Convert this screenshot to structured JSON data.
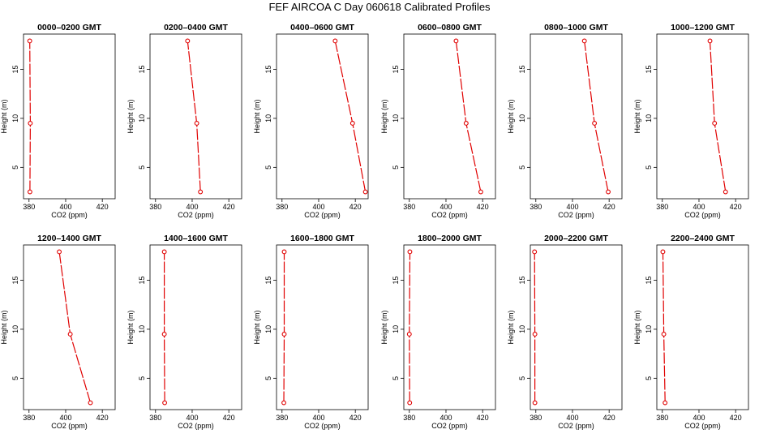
{
  "figure": {
    "title": "FEF AIRCOA C  Day 060618  Calibrated Profiles"
  },
  "colors": {
    "profile": "#e00000",
    "axis": "#000000",
    "background": "#ffffff"
  },
  "chart_data": [
    {
      "type": "line",
      "title": "0000–0200 GMT",
      "xlabel": "CO2 (ppm)",
      "ylabel": "Height (m)",
      "xlim": [
        377,
        427
      ],
      "ylim": [
        1.8,
        18.6
      ],
      "xticks": [
        380,
        400,
        420
      ],
      "yticks": [
        5,
        10,
        15
      ],
      "series": [
        {
          "name": "profile",
          "x": [
            380.5,
            380.7,
            380.4
          ],
          "y": [
            2.5,
            9.5,
            17.9
          ]
        }
      ]
    },
    {
      "type": "line",
      "title": "0200–0400 GMT",
      "xlabel": "CO2 (ppm)",
      "ylabel": "Height (m)",
      "xlim": [
        377,
        427
      ],
      "ylim": [
        1.8,
        18.6
      ],
      "xticks": [
        380,
        400,
        420
      ],
      "yticks": [
        5,
        10,
        15
      ],
      "series": [
        {
          "name": "profile",
          "x": [
            404.5,
            402.5,
            397.5
          ],
          "y": [
            2.5,
            9.5,
            17.9
          ]
        }
      ]
    },
    {
      "type": "line",
      "title": "0400–0600 GMT",
      "xlabel": "CO2 (ppm)",
      "ylabel": "Height (m)",
      "xlim": [
        377,
        427
      ],
      "ylim": [
        1.8,
        18.6
      ],
      "xticks": [
        380,
        400,
        420
      ],
      "yticks": [
        5,
        10,
        15
      ],
      "series": [
        {
          "name": "profile",
          "x": [
            425.5,
            418.5,
            409.0
          ],
          "y": [
            2.5,
            9.5,
            17.9
          ]
        }
      ]
    },
    {
      "type": "line",
      "title": "0600–0800 GMT",
      "xlabel": "CO2 (ppm)",
      "ylabel": "Height (m)",
      "xlim": [
        377,
        427
      ],
      "ylim": [
        1.8,
        18.6
      ],
      "xticks": [
        380,
        400,
        420
      ],
      "yticks": [
        5,
        10,
        15
      ],
      "series": [
        {
          "name": "profile",
          "x": [
            419.0,
            411.0,
            405.5
          ],
          "y": [
            2.5,
            9.5,
            17.9
          ]
        }
      ]
    },
    {
      "type": "line",
      "title": "0800–1000 GMT",
      "xlabel": "CO2 (ppm)",
      "ylabel": "Height (m)",
      "xlim": [
        377,
        427
      ],
      "ylim": [
        1.8,
        18.6
      ],
      "xticks": [
        380,
        400,
        420
      ],
      "yticks": [
        5,
        10,
        15
      ],
      "series": [
        {
          "name": "profile",
          "x": [
            419.5,
            412.0,
            406.5
          ],
          "y": [
            2.5,
            9.5,
            17.9
          ]
        }
      ]
    },
    {
      "type": "line",
      "title": "1000–1200 GMT",
      "xlabel": "CO2 (ppm)",
      "ylabel": "Height (m)",
      "xlim": [
        377,
        427
      ],
      "ylim": [
        1.8,
        18.6
      ],
      "xticks": [
        380,
        400,
        420
      ],
      "yticks": [
        5,
        10,
        15
      ],
      "series": [
        {
          "name": "profile",
          "x": [
            414.5,
            408.5,
            406.0
          ],
          "y": [
            2.5,
            9.5,
            17.9
          ]
        }
      ]
    },
    {
      "type": "line",
      "title": "1200–1400 GMT",
      "xlabel": "CO2 (ppm)",
      "ylabel": "Height (m)",
      "xlim": [
        377,
        427
      ],
      "ylim": [
        1.8,
        18.6
      ],
      "xticks": [
        380,
        400,
        420
      ],
      "yticks": [
        5,
        10,
        15
      ],
      "series": [
        {
          "name": "profile",
          "x": [
            413.5,
            402.5,
            396.5
          ],
          "y": [
            2.5,
            9.5,
            17.9
          ]
        }
      ]
    },
    {
      "type": "line",
      "title": "1400–1600 GMT",
      "xlabel": "CO2 (ppm)",
      "ylabel": "Height (m)",
      "xlim": [
        377,
        427
      ],
      "ylim": [
        1.8,
        18.6
      ],
      "xticks": [
        380,
        400,
        420
      ],
      "yticks": [
        5,
        10,
        15
      ],
      "series": [
        {
          "name": "profile",
          "x": [
            385.0,
            384.8,
            384.8
          ],
          "y": [
            2.5,
            9.5,
            17.9
          ]
        }
      ]
    },
    {
      "type": "line",
      "title": "1600–1800 GMT",
      "xlabel": "CO2 (ppm)",
      "ylabel": "Height (m)",
      "xlim": [
        377,
        427
      ],
      "ylim": [
        1.8,
        18.6
      ],
      "xticks": [
        380,
        400,
        420
      ],
      "yticks": [
        5,
        10,
        15
      ],
      "series": [
        {
          "name": "profile",
          "x": [
            381.0,
            381.2,
            381.2
          ],
          "y": [
            2.5,
            9.5,
            17.9
          ]
        }
      ]
    },
    {
      "type": "line",
      "title": "1800–2000 GMT",
      "xlabel": "CO2 (ppm)",
      "ylabel": "Height (m)",
      "xlim": [
        377,
        427
      ],
      "ylim": [
        1.8,
        18.6
      ],
      "xticks": [
        380,
        400,
        420
      ],
      "yticks": [
        5,
        10,
        15
      ],
      "series": [
        {
          "name": "profile",
          "x": [
            380.2,
            380.0,
            380.3
          ],
          "y": [
            2.5,
            9.5,
            17.9
          ]
        }
      ]
    },
    {
      "type": "line",
      "title": "2000–2200 GMT",
      "xlabel": "CO2 (ppm)",
      "ylabel": "Height (m)",
      "xlim": [
        377,
        427
      ],
      "ylim": [
        1.8,
        18.6
      ],
      "xticks": [
        380,
        400,
        420
      ],
      "yticks": [
        5,
        10,
        15
      ],
      "series": [
        {
          "name": "profile",
          "x": [
            379.5,
            379.5,
            379.3
          ],
          "y": [
            2.5,
            9.5,
            17.9
          ]
        }
      ]
    },
    {
      "type": "line",
      "title": "2200–2400 GMT",
      "xlabel": "CO2 (ppm)",
      "ylabel": "Height (m)",
      "xlim": [
        377,
        427
      ],
      "ylim": [
        1.8,
        18.6
      ],
      "xticks": [
        380,
        400,
        420
      ],
      "yticks": [
        5,
        10,
        15
      ],
      "series": [
        {
          "name": "profile",
          "x": [
            381.5,
            380.8,
            380.3
          ],
          "y": [
            2.5,
            9.5,
            17.9
          ]
        }
      ]
    }
  ]
}
